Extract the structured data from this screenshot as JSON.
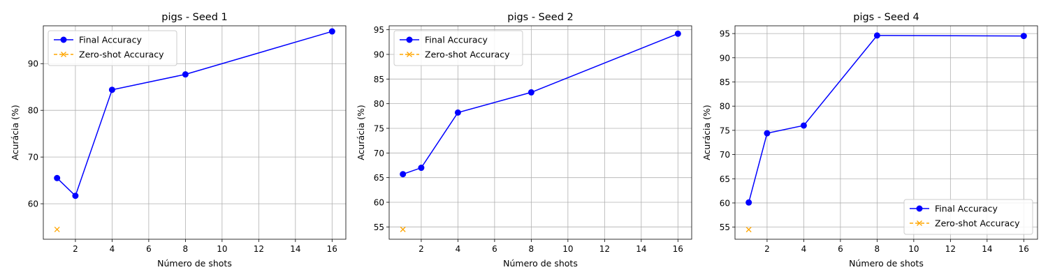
{
  "chart_data": [
    {
      "type": "line",
      "title": "pigs - Seed 1",
      "xlabel": "Número de shots",
      "ylabel": "Acurácia (%)",
      "xlim": [
        0.25,
        16.75
      ],
      "ylim": [
        52.4,
        98.1
      ],
      "xticks": [
        2,
        4,
        6,
        8,
        10,
        12,
        14,
        16
      ],
      "yticks": [
        60,
        70,
        80,
        90
      ],
      "grid": true,
      "legend_position": "upper left",
      "series": [
        {
          "name": "Final Accuracy",
          "color": "#0000ff",
          "marker": "circle",
          "line": "solid",
          "x": [
            1,
            2,
            4,
            8,
            16
          ],
          "y": [
            65.5,
            61.7,
            84.4,
            87.7,
            96.9
          ]
        },
        {
          "name": "Zero-shot Accuracy",
          "color": "#ffa500",
          "marker": "x",
          "line": "dashed",
          "x": [
            1
          ],
          "y": [
            54.5
          ]
        }
      ]
    },
    {
      "type": "line",
      "title": "pigs - Seed 2",
      "xlabel": "Número de shots",
      "ylabel": "Acurácia (%)",
      "xlim": [
        0.25,
        16.75
      ],
      "ylim": [
        52.5,
        95.8
      ],
      "xticks": [
        2,
        4,
        6,
        8,
        10,
        12,
        14,
        16
      ],
      "yticks": [
        55,
        60,
        65,
        70,
        75,
        80,
        85,
        90,
        95
      ],
      "grid": true,
      "legend_position": "upper left",
      "series": [
        {
          "name": "Final Accuracy",
          "color": "#0000ff",
          "marker": "circle",
          "line": "solid",
          "x": [
            1,
            2,
            4,
            8,
            16
          ],
          "y": [
            65.7,
            67.0,
            78.2,
            82.3,
            94.2
          ]
        },
        {
          "name": "Zero-shot Accuracy",
          "color": "#ffa500",
          "marker": "x",
          "line": "dashed",
          "x": [
            1
          ],
          "y": [
            54.5
          ]
        }
      ]
    },
    {
      "type": "line",
      "title": "pigs - Seed 4",
      "xlabel": "Número de shots",
      "ylabel": "Acurácia (%)",
      "xlim": [
        0.25,
        16.75
      ],
      "ylim": [
        52.5,
        96.6
      ],
      "xticks": [
        2,
        4,
        6,
        8,
        10,
        12,
        14,
        16
      ],
      "yticks": [
        55,
        60,
        65,
        70,
        75,
        80,
        85,
        90,
        95
      ],
      "grid": true,
      "legend_position": "lower right",
      "series": [
        {
          "name": "Final Accuracy",
          "color": "#0000ff",
          "marker": "circle",
          "line": "solid",
          "x": [
            1,
            2,
            4,
            8,
            16
          ],
          "y": [
            60.1,
            74.4,
            76.0,
            94.6,
            94.5
          ]
        },
        {
          "name": "Zero-shot Accuracy",
          "color": "#ffa500",
          "marker": "x",
          "line": "dashed",
          "x": [
            1
          ],
          "y": [
            54.5
          ]
        }
      ]
    }
  ]
}
